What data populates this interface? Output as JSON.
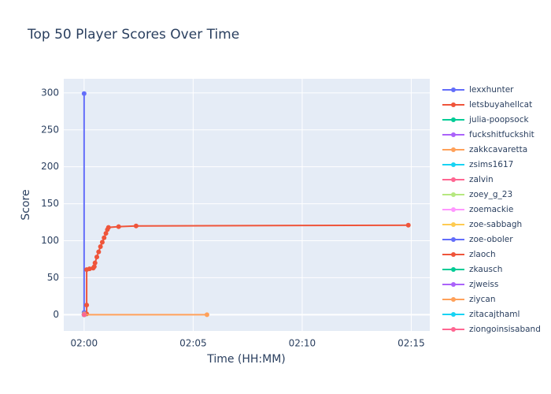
{
  "chart_data": {
    "type": "line",
    "title": "Top 50 Player Scores Over Time",
    "x_label": "Time (HH:MM)",
    "y_label": "Score",
    "xlim": [
      "01:59:04",
      "02:15:51"
    ],
    "xticks": [
      {
        "value": "02:00",
        "label": "02:00"
      },
      {
        "value": "02:05",
        "label": "02:05"
      },
      {
        "value": "02:10",
        "label": "02:10"
      },
      {
        "value": "02:15",
        "label": "02:15"
      }
    ],
    "ylim": [
      -22,
      319
    ],
    "yticks": [
      0,
      50,
      100,
      150,
      200,
      250,
      300
    ],
    "grid": true,
    "legend": "right",
    "series": [
      {
        "name": "lexxhunter",
        "color": "#636efa",
        "x": [
          "02:00:00",
          "02:00:00"
        ],
        "values": [
          299,
          3
        ]
      },
      {
        "name": "letsbuyahellcat",
        "color": "#EF553B",
        "x": [
          "02:00:07",
          "02:00:07",
          "02:00:07",
          "02:00:15",
          "02:00:25",
          "02:00:28",
          "02:00:30",
          "02:00:35",
          "02:00:40",
          "02:00:45",
          "02:00:50",
          "02:00:55",
          "02:01:00",
          "02:01:04",
          "02:01:07",
          "02:01:35",
          "02:02:23",
          "02:14:52"
        ],
        "values": [
          1,
          13,
          61,
          62,
          63,
          65,
          70,
          78,
          85,
          92,
          98,
          104,
          110,
          115,
          118,
          119,
          120,
          121
        ]
      },
      {
        "name": "julia-poopsock",
        "color": "#00cc96",
        "x": [
          "02:00:00"
        ],
        "values": [
          0
        ]
      },
      {
        "name": "fuckshitfuckshit",
        "color": "#ab63fa",
        "x": [
          "02:00:00"
        ],
        "values": [
          0
        ]
      },
      {
        "name": "zakkcavaretta",
        "color": "#FFA15A",
        "x": [
          "02:00:00"
        ],
        "values": [
          1
        ]
      },
      {
        "name": "zsims1617",
        "color": "#19d3f3",
        "x": [
          "02:00:00"
        ],
        "values": [
          0
        ]
      },
      {
        "name": "zalvin",
        "color": "#FF6692",
        "x": [
          "02:00:00"
        ],
        "values": [
          0
        ]
      },
      {
        "name": "zoey_g_23",
        "color": "#B6E880",
        "x": [
          "02:00:00"
        ],
        "values": [
          0
        ]
      },
      {
        "name": "zoemackie",
        "color": "#FF97FF",
        "x": [
          "02:00:00"
        ],
        "values": [
          0
        ]
      },
      {
        "name": "zoe-sabbagh",
        "color": "#FECB52",
        "x": [
          "02:00:00"
        ],
        "values": [
          0
        ]
      },
      {
        "name": "zoe-oboler",
        "color": "#636efa",
        "x": [
          "02:00:00"
        ],
        "values": [
          0
        ]
      },
      {
        "name": "zlaoch",
        "color": "#EF553B",
        "x": [
          "02:00:00"
        ],
        "values": [
          0
        ]
      },
      {
        "name": "zkausch",
        "color": "#00cc96",
        "x": [
          "02:00:00"
        ],
        "values": [
          0
        ]
      },
      {
        "name": "zjweiss",
        "color": "#ab63fa",
        "x": [
          "02:00:00"
        ],
        "values": [
          0
        ]
      },
      {
        "name": "ziycan",
        "color": "#FFA15A",
        "x": [
          "02:00:00",
          "02:05:38"
        ],
        "values": [
          0,
          0
        ]
      },
      {
        "name": "zitacajthaml",
        "color": "#19d3f3",
        "x": [
          "02:00:00"
        ],
        "values": [
          0
        ]
      },
      {
        "name": "ziongoinsisaband",
        "color": "#FF6692",
        "x": [
          "02:00:00"
        ],
        "values": [
          0
        ]
      }
    ]
  }
}
